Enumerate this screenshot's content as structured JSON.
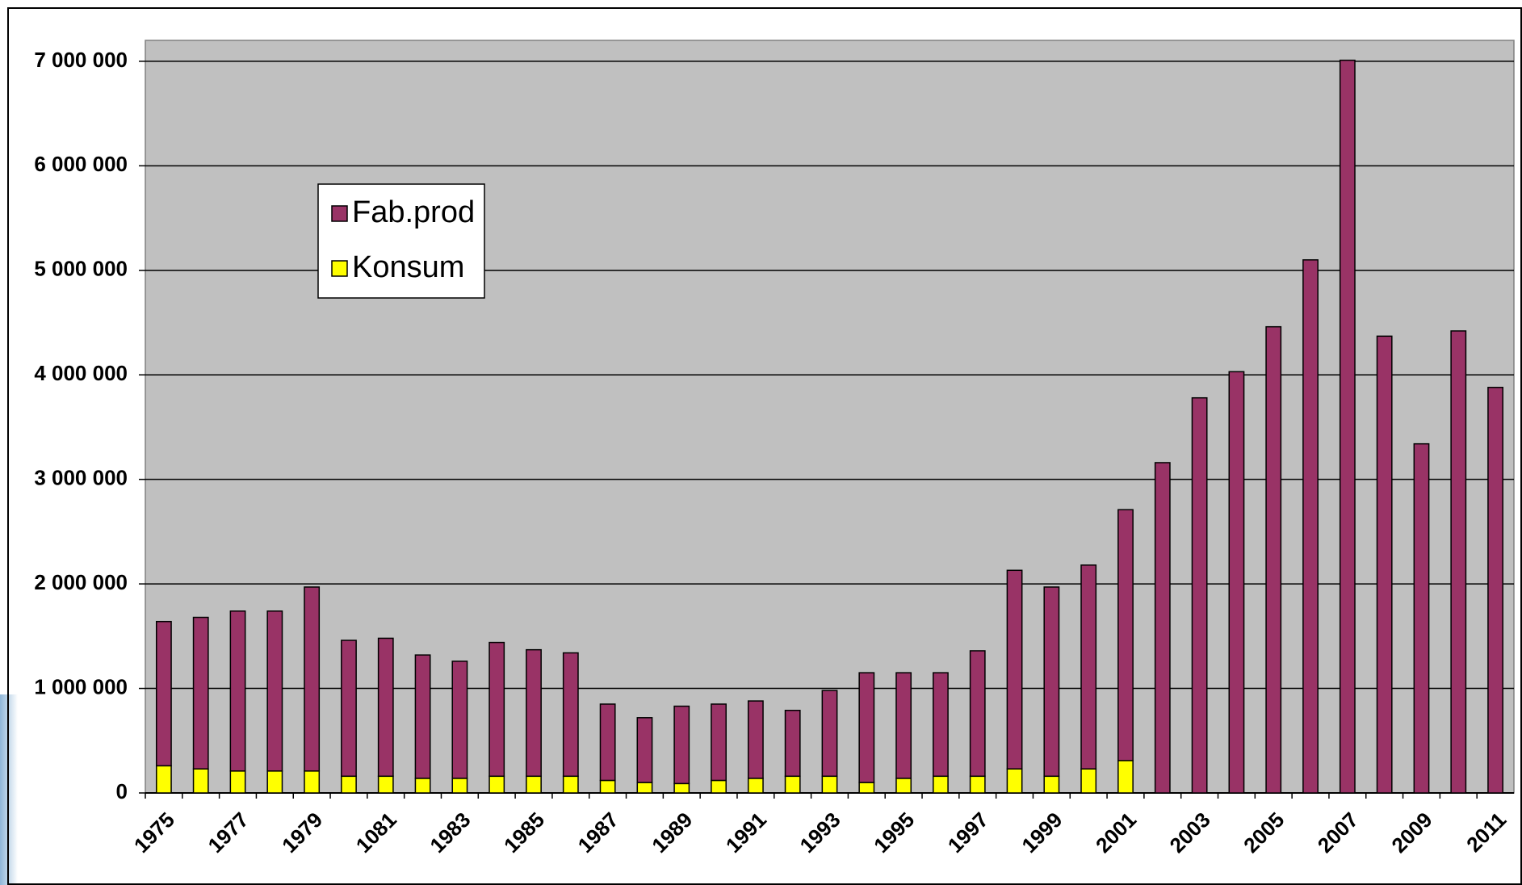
{
  "chart_data": {
    "type": "stacked_bar",
    "categories": [
      "1975",
      null,
      "1977",
      null,
      "1979",
      null,
      "1081",
      null,
      "1983",
      null,
      "1985",
      null,
      "1987",
      null,
      "1989",
      null,
      "1991",
      null,
      "1993",
      null,
      "1995",
      null,
      "1997",
      null,
      "1999",
      null,
      "2001",
      null,
      "2003",
      null,
      "2005",
      null,
      "2007",
      null,
      "2009",
      null,
      "2011"
    ],
    "series": [
      {
        "name": "Fab.prod",
        "color": "#993366",
        "values": [
          1380000,
          1450000,
          1530000,
          1530000,
          1760000,
          1300000,
          1320000,
          1180000,
          1120000,
          1280000,
          1210000,
          1180000,
          730000,
          620000,
          740000,
          730000,
          740000,
          630000,
          820000,
          1050000,
          1010000,
          990000,
          1200000,
          1900000,
          1810000,
          1950000,
          2400000,
          3160000,
          3780000,
          4030000,
          4460000,
          5100000,
          7010000,
          4370000,
          3340000,
          4420000,
          3880000
        ]
      },
      {
        "name": "Konsum",
        "color": "#ffff00",
        "values": [
          260000,
          230000,
          210000,
          210000,
          210000,
          160000,
          160000,
          140000,
          140000,
          160000,
          160000,
          160000,
          120000,
          100000,
          90000,
          120000,
          140000,
          160000,
          160000,
          100000,
          140000,
          160000,
          160000,
          230000,
          160000,
          230000,
          310000,
          0,
          0,
          0,
          0,
          0,
          0,
          0,
          0,
          0,
          0
        ]
      }
    ],
    "ylim": [
      0,
      7200000
    ],
    "yticks": [
      0,
      {
        "value": 1000000,
        "label": "1 000 000"
      },
      {
        "value": 2000000,
        "label": "2 000 000"
      },
      {
        "value": 3000000,
        "label": "3 000 000"
      },
      {
        "value": 4000000,
        "label": "4 000 000"
      },
      {
        "value": 5000000,
        "label": "5 000 000"
      },
      {
        "value": 6000000,
        "label": "6 000 000"
      },
      {
        "value": 7000000,
        "label": "7 000 000"
      }
    ],
    "grid": true,
    "plot_background": "#c0c0c0",
    "legend": "upper left"
  }
}
